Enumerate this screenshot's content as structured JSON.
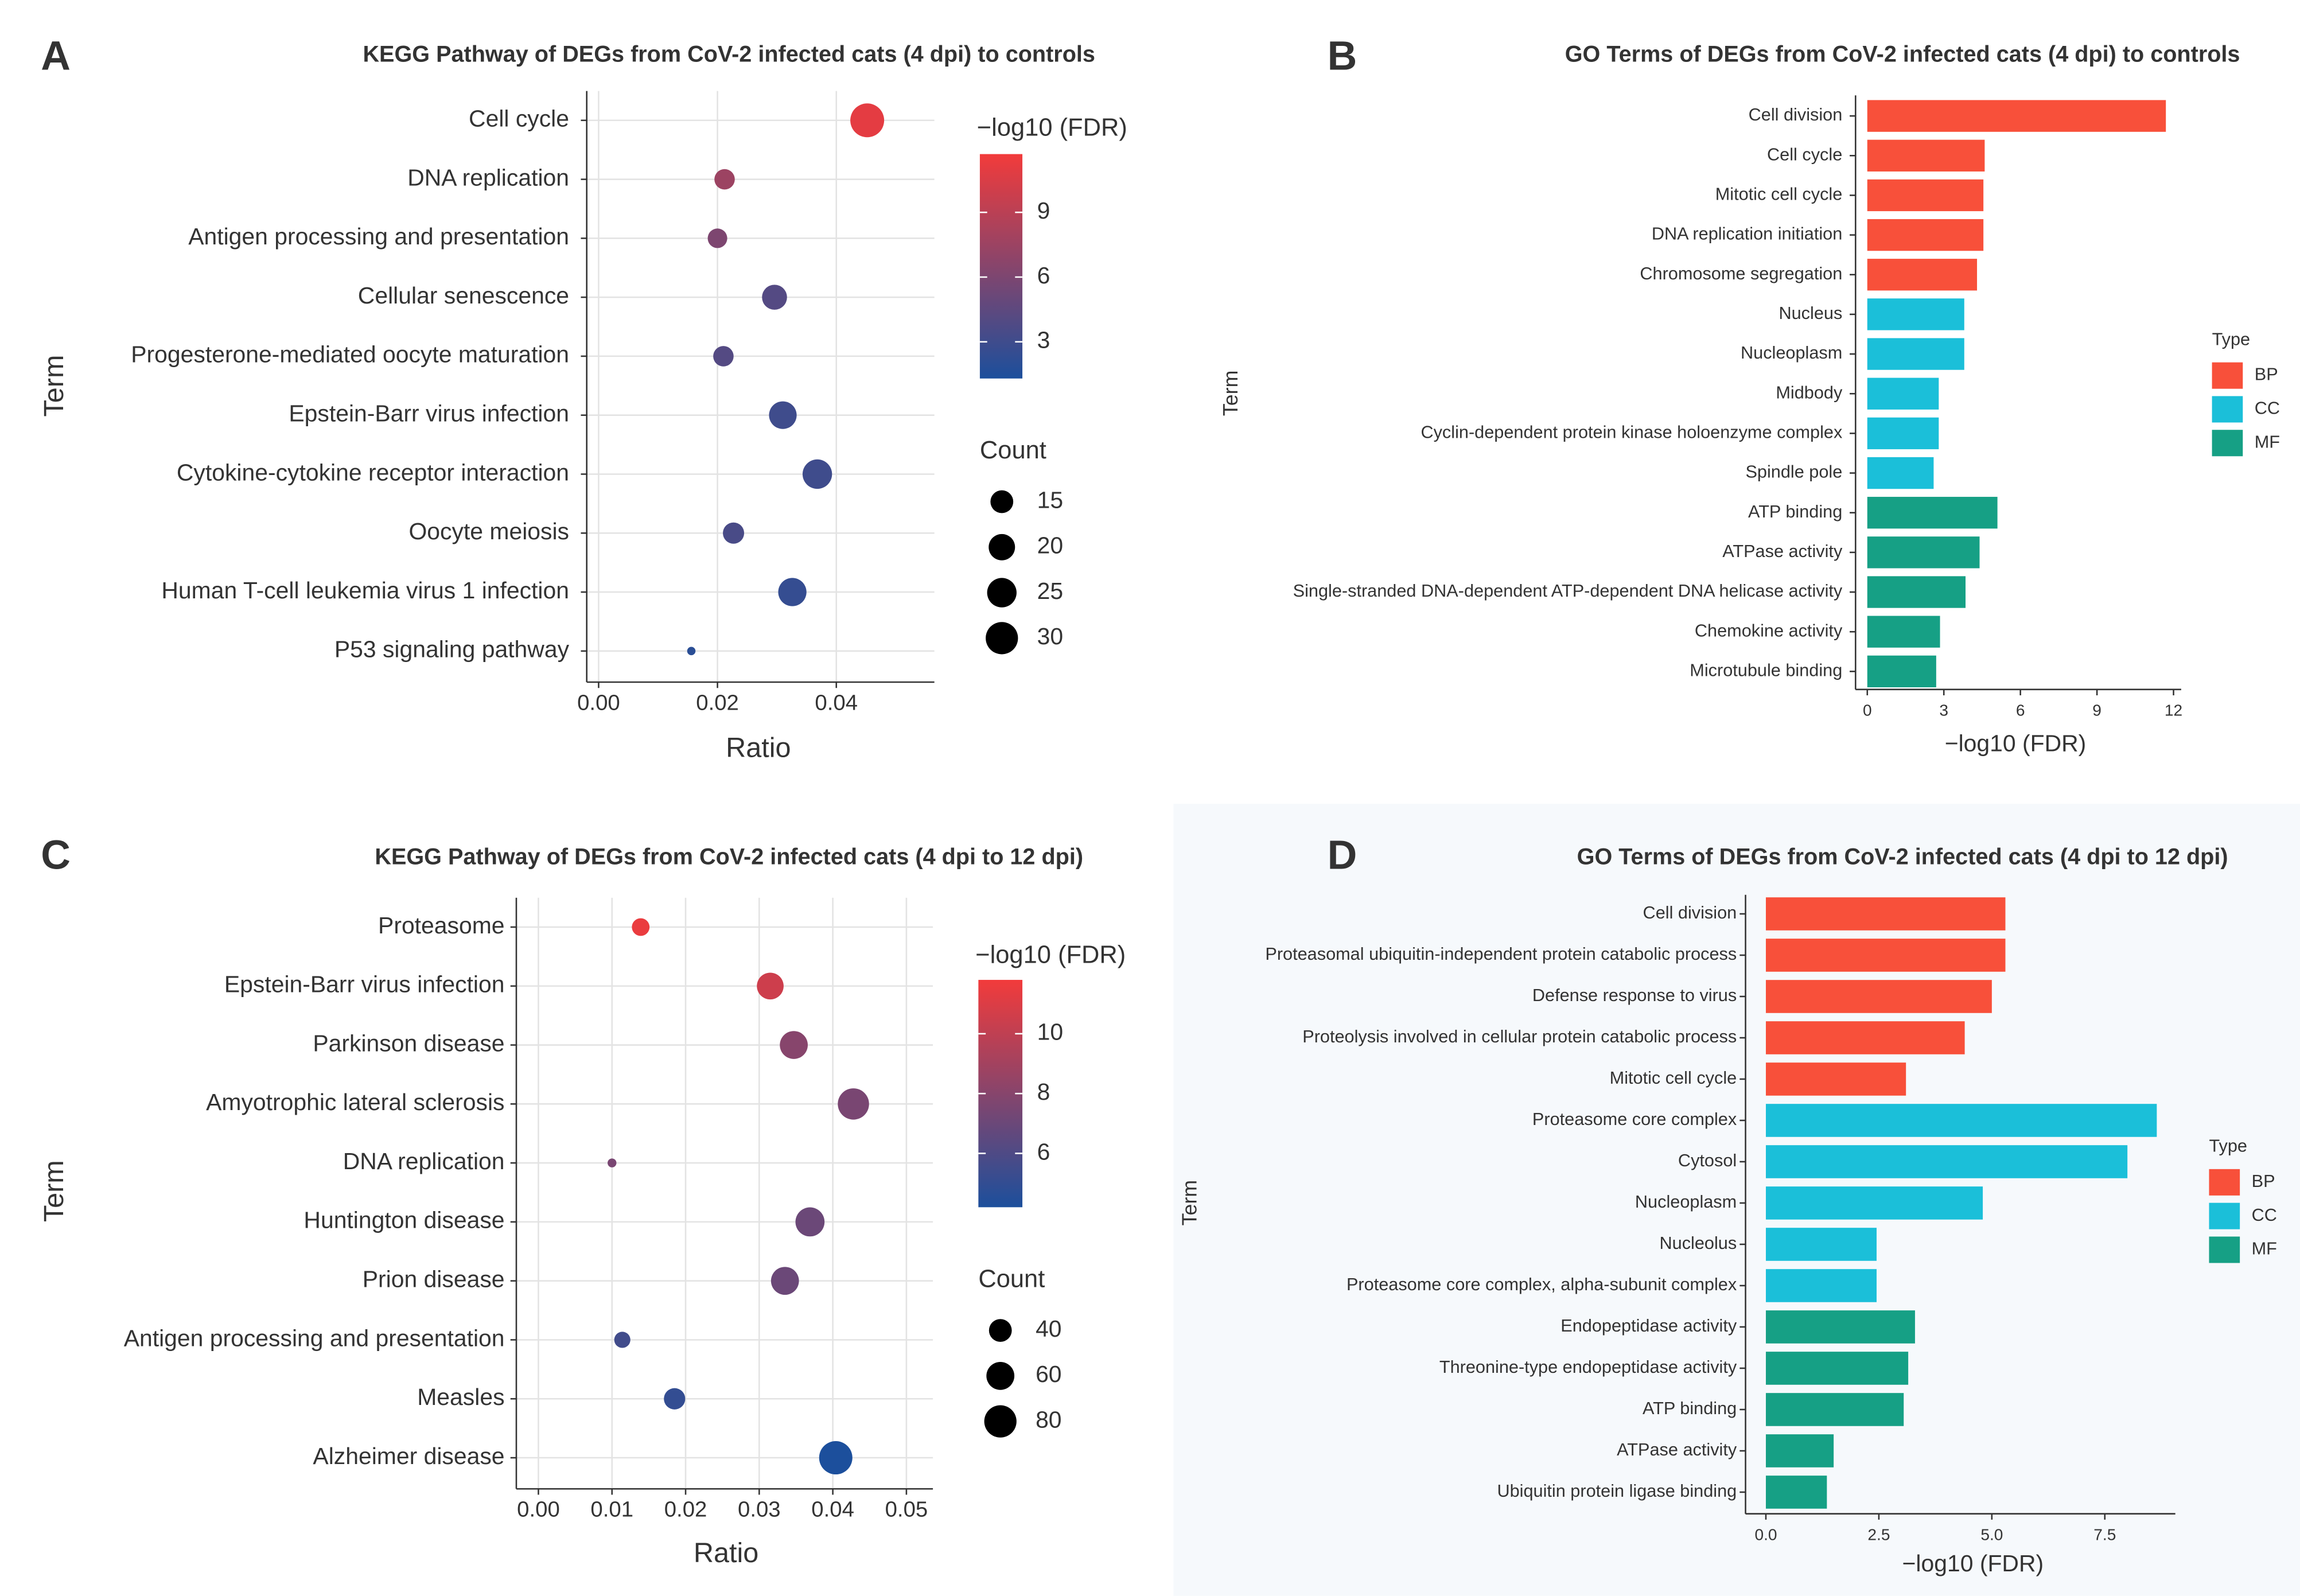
{
  "chart_data": [
    {
      "type": "dot",
      "panel": "A",
      "title": "KEGG Pathway of DEGs from CoV-2 infected cats (4 dpi) to controls",
      "x_label": "Ratio",
      "y_label": "Term",
      "categories": [
        "Cell cycle",
        "DNA replication",
        "Antigen processing and presentation",
        "Cellular senescence",
        "Progesterone-mediated oocyte maturation",
        "Epstein-Barr virus infection",
        "Cytokine-cytokine receptor interaction",
        "Oocyte meiosis",
        "Human T-cell leukemia virus 1 infection",
        "P53 signaling pathway"
      ],
      "values": [
        0.0452,
        0.0212,
        0.02,
        0.0296,
        0.021,
        0.031,
        0.0368,
        0.0227,
        0.0326,
        0.0156
      ],
      "fdr": [
        11,
        7.5,
        6,
        4,
        4,
        3,
        3,
        3.5,
        2.5,
        2
      ],
      "counts": [
        33,
        12,
        11,
        18,
        12,
        22,
        25,
        13,
        23,
        2
      ],
      "xlim": [
        -0.002,
        0.0565
      ],
      "xticks": [
        {
          "value": 0,
          "label": "0.00"
        },
        {
          "value": 0.02,
          "label": "0.02"
        },
        {
          "value": 0.04,
          "label": "0.04"
        }
      ],
      "grid": true,
      "color_legend": {
        "title": "−log10 (FDR)",
        "lim": [
          1.3,
          11.7
        ],
        "ticks": [
          3,
          6,
          9
        ],
        "colors": [
          "#1c4f9c",
          "#f23b3b"
        ]
      },
      "size_legend": {
        "title": "Count",
        "values": [
          15,
          20,
          25,
          30
        ]
      }
    },
    {
      "type": "bar",
      "panel": "B",
      "title": "GO Terms of DEGs from CoV-2 infected cats (4 dpi) to controls",
      "x_label": "−log10 (FDR)",
      "y_label": "Term",
      "categories": [
        "Cell division",
        "Cell cycle",
        "Mitotic cell cycle",
        "DNA replication initiation",
        "Chromosome segregation",
        "Nucleus",
        "Nucleoplasm",
        "Midbody",
        "Cyclin-dependent protein kinase holoenzyme complex",
        "Spindle pole",
        "ATP binding",
        "ATPase activity",
        "Single-stranded DNA-dependent ATP-dependent DNA helicase activity",
        "Chemokine activity",
        "Microtubule binding"
      ],
      "values": [
        11.7,
        4.6,
        4.55,
        4.55,
        4.3,
        3.8,
        3.8,
        2.8,
        2.8,
        2.6,
        5.1,
        4.4,
        3.85,
        2.85,
        2.7
      ],
      "groups": [
        "BP",
        "BP",
        "BP",
        "BP",
        "BP",
        "CC",
        "CC",
        "CC",
        "CC",
        "CC",
        "MF",
        "MF",
        "MF",
        "MF",
        "MF"
      ],
      "xlim": [
        -0.46,
        12.3
      ],
      "xticks": [
        0,
        3,
        6,
        9,
        12
      ],
      "legend": {
        "title": "Type",
        "names": [
          "BP",
          "CC",
          "MF"
        ],
        "colors": [
          "#f8503a",
          "#1bbfd9",
          "#16a085"
        ]
      }
    },
    {
      "type": "dot",
      "panel": "C",
      "title": "KEGG Pathway of DEGs from CoV-2 infected cats (4 dpi to 12 dpi)",
      "x_label": "Ratio",
      "y_label": "Term",
      "categories": [
        "Proteasome",
        "Epstein-Barr virus infection",
        "Parkinson disease",
        "Amyotrophic lateral sclerosis",
        "DNA replication",
        "Huntington disease",
        "Prion disease",
        "Antigen processing and presentation",
        "Measles",
        "Alzheimer disease"
      ],
      "values": [
        0.0139,
        0.0315,
        0.0347,
        0.0428,
        0.01,
        0.0369,
        0.0335,
        0.0114,
        0.0185,
        0.0404
      ],
      "fdr": [
        11.5,
        10.5,
        8,
        7.5,
        7.5,
        7,
        7,
        5.5,
        5,
        4.2
      ],
      "counts": [
        24,
        55,
        60,
        75,
        6,
        65,
        60,
        20,
        35,
        85
      ],
      "xlim": [
        -0.003,
        0.0536
      ],
      "xticks": [
        {
          "value": 0,
          "label": "0.00"
        },
        {
          "value": 0.01,
          "label": "0.01"
        },
        {
          "value": 0.02,
          "label": "0.02"
        },
        {
          "value": 0.03,
          "label": "0.03"
        },
        {
          "value": 0.04,
          "label": "0.04"
        },
        {
          "value": 0.05,
          "label": "0.05"
        }
      ],
      "grid": true,
      "color_legend": {
        "title": "−log10 (FDR)",
        "lim": [
          4.2,
          11.8
        ],
        "ticks": [
          6,
          8,
          10
        ],
        "colors": [
          "#1c4f9c",
          "#f23b3b"
        ]
      },
      "size_legend": {
        "title": "Count",
        "values": [
          40,
          60,
          80
        ]
      }
    },
    {
      "type": "bar",
      "panel": "D",
      "title": "GO Terms of DEGs from CoV-2 infected cats (4 dpi to 12 dpi)",
      "x_label": "−log10 (FDR)",
      "y_label": "Term",
      "categories": [
        "Cell division",
        "Proteasomal ubiquitin-independent protein catabolic process",
        "Defense response to virus",
        "Proteolysis involved in cellular protein catabolic process",
        "Mitotic cell cycle",
        "Proteasome core complex",
        "Cytosol",
        "Nucleoplasm",
        "Nucleolus",
        "Proteasome core complex, alpha-subunit complex",
        "Endopeptidase activity",
        "Threonine-type endopeptidase activity",
        "ATP binding",
        "ATPase activity",
        "Ubiquitin protein ligase binding"
      ],
      "values": [
        5.3,
        5.3,
        5.0,
        4.4,
        3.1,
        8.65,
        8.0,
        4.8,
        2.45,
        2.45,
        3.3,
        3.15,
        3.05,
        1.5,
        1.35
      ],
      "groups": [
        "BP",
        "BP",
        "BP",
        "BP",
        "BP",
        "CC",
        "CC",
        "CC",
        "CC",
        "CC",
        "MF",
        "MF",
        "MF",
        "MF",
        "MF"
      ],
      "xlim": [
        -0.45,
        9.06
      ],
      "xticks": [
        {
          "value": 0,
          "label": "0.0"
        },
        2.5,
        {
          "value": 5,
          "label": "5.0"
        },
        7.5
      ],
      "legend": {
        "title": "Type",
        "names": [
          "BP",
          "CC",
          "MF"
        ],
        "colors": [
          "#f8503a",
          "#1bbfd9",
          "#16a085"
        ]
      }
    }
  ]
}
